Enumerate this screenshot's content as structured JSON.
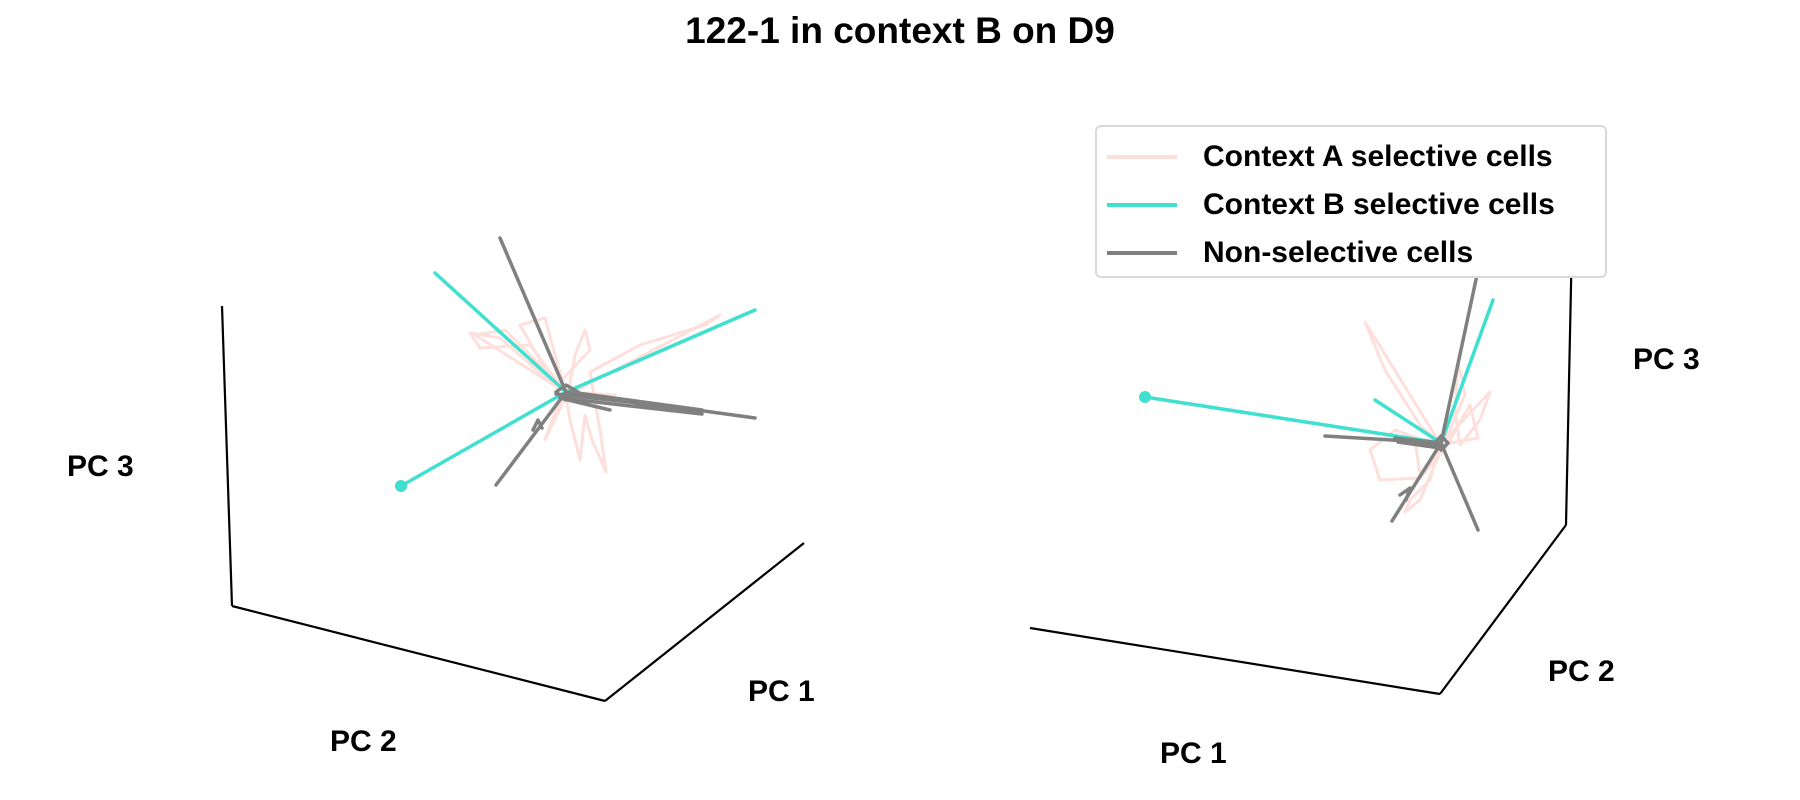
{
  "title": "122-1 in context B on D9",
  "colors": {
    "context_a": "#fde0dc",
    "context_b": "#40e0d0",
    "non_selective": "#808080",
    "axes": "#000000"
  },
  "legend": {
    "placement": "top-right",
    "items": [
      {
        "label": "Context A selective cells",
        "color": "#fde0dc"
      },
      {
        "label": "Context B selective cells",
        "color": "#40e0d0"
      },
      {
        "label": "Non-selective cells",
        "color": "#808080"
      }
    ]
  },
  "chart_data": [
    {
      "type": "line",
      "projection": "3d",
      "grid": false,
      "title": "",
      "axis_labels": {
        "x": "PC 1",
        "y": "PC 2",
        "z": "PC 3"
      },
      "series": [
        {
          "name": "Context A selective cells",
          "color": "#fde0dc"
        },
        {
          "name": "Context B selective cells",
          "color": "#40e0d0"
        },
        {
          "name": "Non-selective cells",
          "color": "#808080"
        }
      ]
    },
    {
      "type": "line",
      "projection": "3d",
      "grid": false,
      "title": "",
      "axis_labels": {
        "x": "PC 1",
        "y": "PC 2",
        "z": "PC 3"
      },
      "series": [
        {
          "name": "Context A selective cells",
          "color": "#fde0dc"
        },
        {
          "name": "Context B selective cells",
          "color": "#40e0d0"
        },
        {
          "name": "Non-selective cells",
          "color": "#808080"
        }
      ]
    }
  ]
}
